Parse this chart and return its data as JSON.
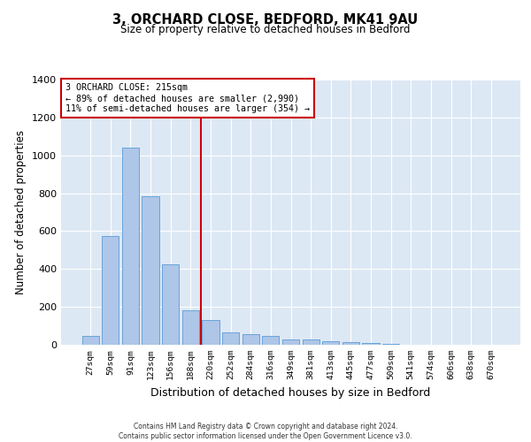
{
  "title1": "3, ORCHARD CLOSE, BEDFORD, MK41 9AU",
  "title2": "Size of property relative to detached houses in Bedford",
  "xlabel": "Distribution of detached houses by size in Bedford",
  "ylabel": "Number of detached properties",
  "categories": [
    "27sqm",
    "59sqm",
    "91sqm",
    "123sqm",
    "156sqm",
    "188sqm",
    "220sqm",
    "252sqm",
    "284sqm",
    "316sqm",
    "349sqm",
    "381sqm",
    "413sqm",
    "445sqm",
    "477sqm",
    "509sqm",
    "541sqm",
    "574sqm",
    "606sqm",
    "638sqm",
    "670sqm"
  ],
  "values": [
    45,
    575,
    1040,
    785,
    425,
    180,
    130,
    65,
    55,
    45,
    30,
    28,
    20,
    15,
    10,
    4,
    2,
    1,
    0,
    0,
    0
  ],
  "bar_color": "#aec6e8",
  "bar_edge_color": "#5a9bd5",
  "red_line_x": 5.5,
  "ylim": [
    0,
    1400
  ],
  "yticks": [
    0,
    200,
    400,
    600,
    800,
    1000,
    1200,
    1400
  ],
  "annotation_text": "3 ORCHARD CLOSE: 215sqm\n← 89% of detached houses are smaller (2,990)\n11% of semi-detached houses are larger (354) →",
  "annotation_box_color": "#ffffff",
  "annotation_box_edge": "#cc0000",
  "background_color": "#dde8f5",
  "grid_color": "#ffffff",
  "footer1": "Contains HM Land Registry data © Crown copyright and database right 2024.",
  "footer2": "Contains public sector information licensed under the Open Government Licence v3.0."
}
